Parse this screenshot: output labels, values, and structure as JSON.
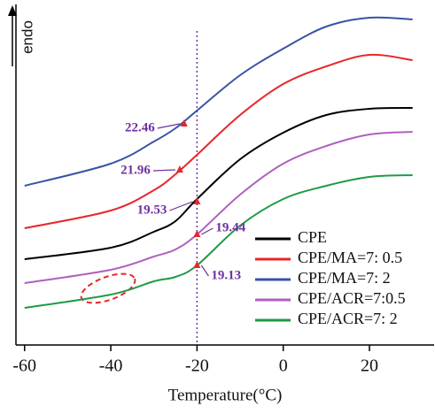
{
  "chart_data": {
    "type": "line",
    "x_label": "Temperature(°C)",
    "y_label": "endo",
    "x": [
      -60,
      -40,
      -30,
      -25,
      -20,
      -10,
      0,
      10,
      20,
      30
    ],
    "series": [
      {
        "name": "CPE",
        "color": "#000000",
        "values": [
          97,
          110,
          128,
          140,
          165,
          210,
          240,
          260,
          267,
          268
        ]
      },
      {
        "name": "CPE/MA=7: 0.5",
        "color": "#e8262a",
        "values": [
          132,
          152,
          175,
          193,
          215,
          260,
          295,
          315,
          328,
          322
        ]
      },
      {
        "name": "CPE/MA=7: 2",
        "color": "#3953a4",
        "values": [
          180,
          205,
          230,
          245,
          265,
          305,
          335,
          360,
          370,
          368
        ]
      },
      {
        "name": "CPE/ACR=7:0.5",
        "color": "#b05fc0",
        "values": [
          70,
          85,
          100,
          108,
          125,
          170,
          205,
          225,
          238,
          241
        ]
      },
      {
        "name": "CPE/ACR=7: 2",
        "color": "#1f9a48",
        "values": [
          42,
          57,
          72,
          77,
          90,
          135,
          165,
          180,
          190,
          192
        ]
      }
    ],
    "annotations": [
      {
        "text": "22.46",
        "x": -23,
        "y": 250
      },
      {
        "text": "21.96",
        "x": -24,
        "y": 198
      },
      {
        "text": "19.53",
        "x": -20,
        "y": 162
      },
      {
        "text": "19.44",
        "x": -20,
        "y": 125
      },
      {
        "text": "19.13",
        "x": -20,
        "y": 90
      }
    ],
    "vline": -20,
    "annotation_color": "#7030a0",
    "xlim": [
      -62,
      35
    ],
    "ylim": [
      0,
      385
    ],
    "xticks": [
      -60,
      -40,
      -20,
      0,
      20
    ],
    "legend": "lower right"
  }
}
